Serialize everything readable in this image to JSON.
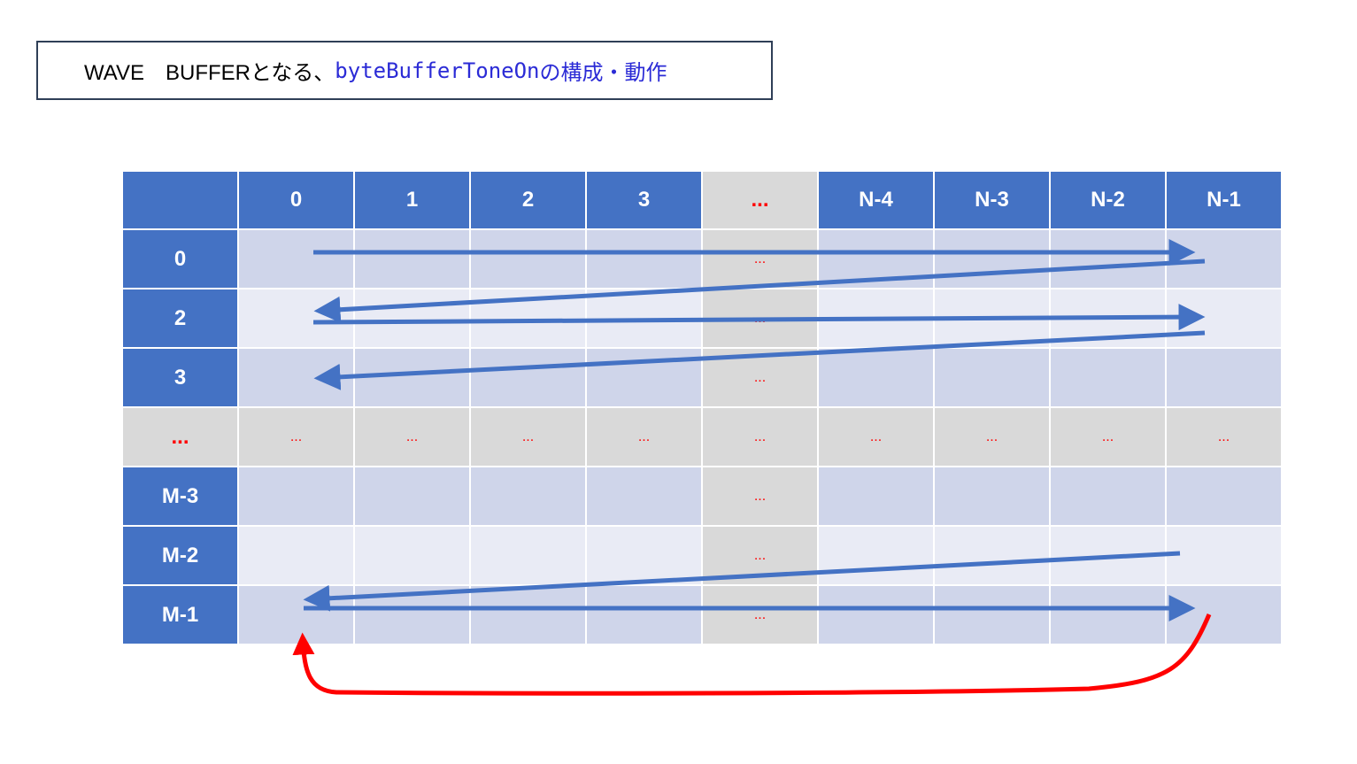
{
  "title": {
    "part1": "WAVE　BUFFER",
    "part2": "となる、",
    "part3": "byteBufferToneOn",
    "part4": "の構成・動作"
  },
  "grid": {
    "corner": "",
    "columns": [
      "0",
      "1",
      "2",
      "3",
      "...",
      "N-4",
      "N-3",
      "N-2",
      "N-1"
    ],
    "rows": [
      {
        "label": "0",
        "cells": [
          "",
          "",
          "",
          "",
          "...",
          "",
          "",
          "",
          ""
        ]
      },
      {
        "label": "2",
        "cells": [
          "",
          "",
          "",
          "",
          "...",
          "",
          "",
          "",
          ""
        ]
      },
      {
        "label": "3",
        "cells": [
          "",
          "",
          "",
          "",
          "...",
          "",
          "",
          "",
          ""
        ]
      },
      {
        "label": "...",
        "cells": [
          "...",
          "...",
          "...",
          "...",
          "...",
          "...",
          "...",
          "...",
          "..."
        ]
      },
      {
        "label": "M-3",
        "cells": [
          "",
          "",
          "",
          "",
          "...",
          "",
          "",
          "",
          ""
        ]
      },
      {
        "label": "M-2",
        "cells": [
          "",
          "",
          "",
          "",
          "...",
          "",
          "",
          "",
          ""
        ]
      },
      {
        "label": "M-1",
        "cells": [
          "",
          "",
          "",
          "",
          "...",
          "",
          "",
          "",
          ""
        ]
      }
    ]
  },
  "colors": {
    "header_blue": "#4472c4",
    "row_a": "#cfd5ea",
    "row_b": "#e9ebf5",
    "gray": "#d9d9d9",
    "arrow_blue": "#4472c4",
    "loop_red": "#ff0000",
    "dots_red": "#ff0000"
  }
}
